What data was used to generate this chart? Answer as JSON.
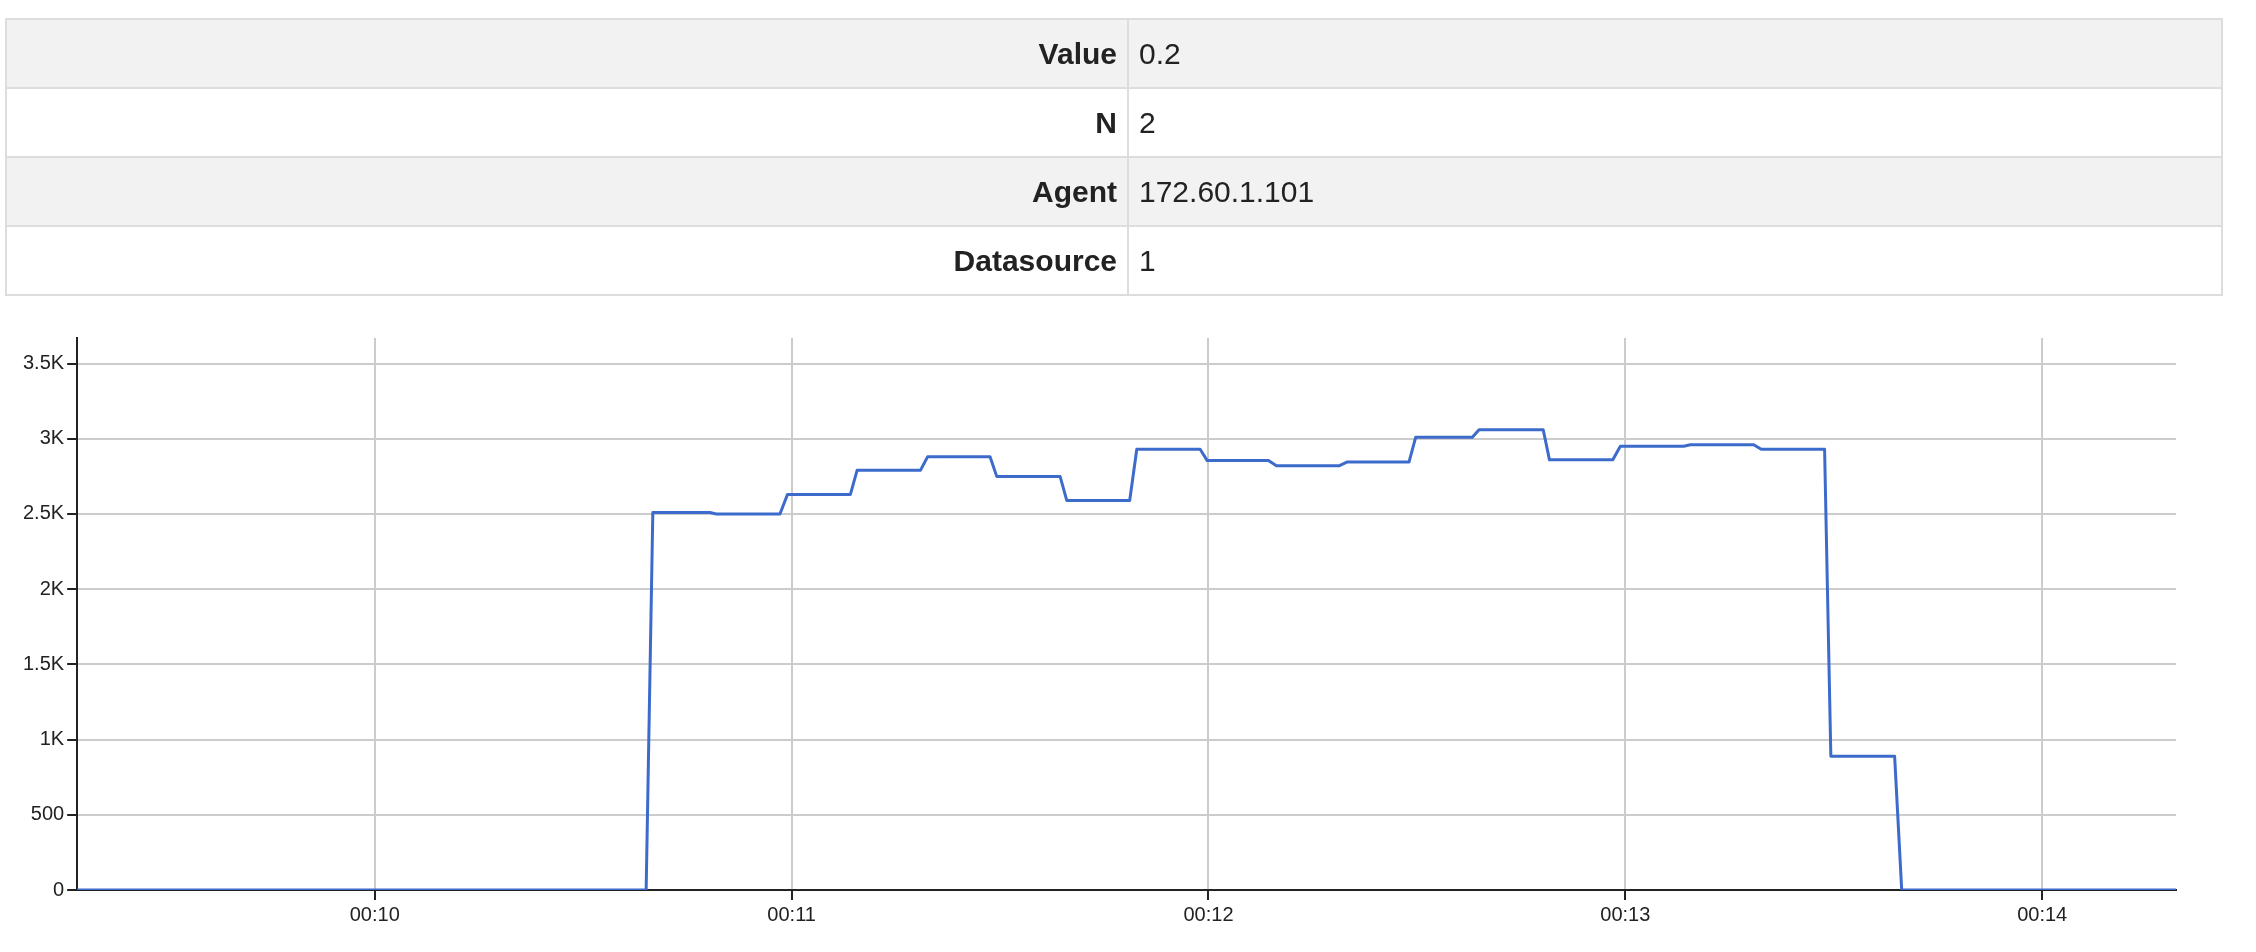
{
  "chart_data": [
    {
      "type": "other",
      "categories": [
        "Value",
        "N",
        "Agent",
        "Datasource"
      ],
      "value_labels": [
        "0.2",
        "2",
        "172.60.1.101",
        "1"
      ]
    },
    {
      "type": "line",
      "x": [
        9.286,
        10.651,
        10.667,
        10.804,
        10.819,
        10.972,
        10.99,
        11.141,
        11.157,
        11.309,
        11.326,
        11.476,
        11.492,
        11.644,
        11.66,
        11.811,
        11.828,
        11.98,
        11.997,
        12.144,
        12.163,
        12.313,
        12.332,
        12.481,
        12.497,
        12.633,
        12.649,
        12.803,
        12.818,
        12.97,
        12.988,
        13.14,
        13.156,
        13.308,
        13.326,
        13.478,
        13.493,
        13.646,
        13.663,
        14.321
      ],
      "series": [
        {
          "color": "#3d6bcc",
          "values": [
            0,
            0,
            2510,
            2510,
            2500,
            2500,
            2630,
            2630,
            2790,
            2790,
            2880,
            2880,
            2750,
            2750,
            2590,
            2590,
            2930,
            2930,
            2855,
            2855,
            2820,
            2820,
            2845,
            2845,
            3010,
            3010,
            3060,
            3060,
            2860,
            2860,
            2950,
            2950,
            2960,
            2960,
            2930,
            2930,
            890,
            890,
            0,
            0
          ]
        }
      ],
      "xlim": [
        9.286,
        14.321
      ],
      "xticks": [
        {
          "value": 10,
          "label": "00:10"
        },
        {
          "value": 11,
          "label": "00:11"
        },
        {
          "value": 12,
          "label": "00:12"
        },
        {
          "value": 13,
          "label": "00:13"
        },
        {
          "value": 14,
          "label": "00:14"
        }
      ],
      "ylim": [
        0,
        3670
      ],
      "yticks": [
        0,
        500,
        {
          "value": 1000,
          "label": "1K"
        },
        {
          "value": 1500,
          "label": "1.5K"
        },
        {
          "value": 2000,
          "label": "2K"
        },
        {
          "value": 2500,
          "label": "2.5K"
        },
        {
          "value": 3000,
          "label": "3K"
        },
        {
          "value": 3500,
          "label": "3.5K"
        }
      ],
      "grid": true,
      "legend": false,
      "marker": "none",
      "line_style": "solid"
    }
  ]
}
